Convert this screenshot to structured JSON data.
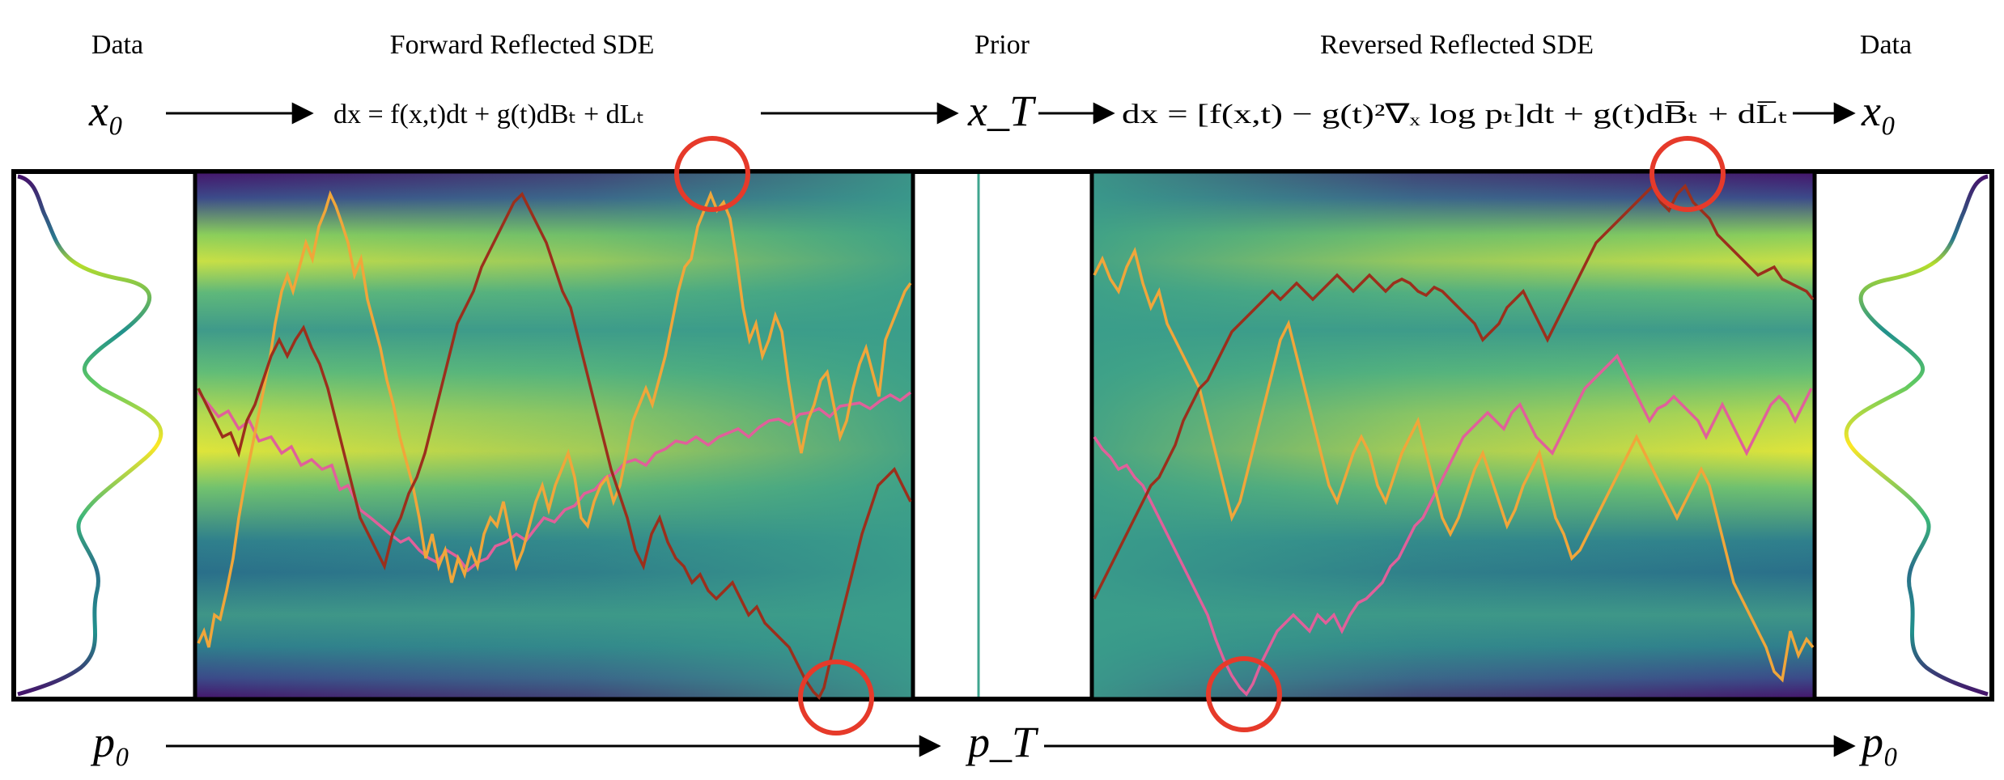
{
  "headers": {
    "data_left": "Data",
    "forward": "Forward Reflected SDE",
    "prior": "Prior",
    "reversed": "Reversed Reflected SDE",
    "data_right": "Data"
  },
  "top_row": {
    "x0_left": "x₀",
    "forward_eq": "dx = f(x,t)dt + g(t)dBₜ + dLₜ",
    "xT": "x_T",
    "reverse_eq": "dx = [f(x,t) − g(t)²∇ₓ log pₜ]dt + g(t)dB̅ₜ + dL̅ₜ",
    "x0_right": "x₀"
  },
  "bottom_row": {
    "p0_left": "p₀",
    "pT": "p_T",
    "p0_right": "p₀"
  },
  "colors": {
    "trajectory_1": "#f0a63a",
    "trajectory_2": "#e0609a",
    "trajectory_3": "#9b2f1c",
    "circle": "#e63a2a",
    "viridis_low": "#440154",
    "viridis_mid": "#21918c",
    "viridis_high": "#fde725",
    "prior_line": "#3fa58f"
  },
  "icons": [
    "reflection-circle"
  ]
}
